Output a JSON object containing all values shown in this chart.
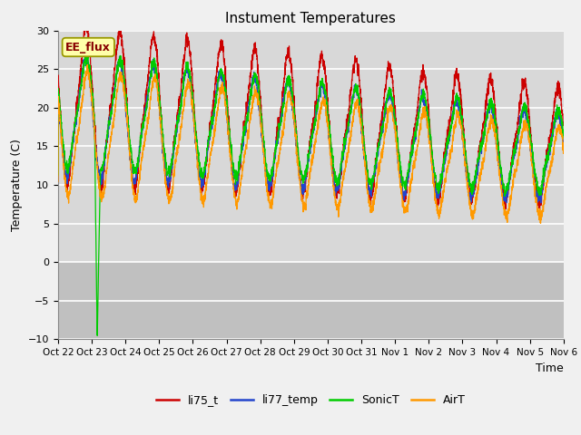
{
  "title": "Instument Temperatures",
  "ylabel": "Temperature (C)",
  "xlabel": "Time",
  "ylim": [
    -10,
    30
  ],
  "bg_color_upper": "#d8d8d8",
  "bg_color_lower": "#c8c8c8",
  "fig_bg": "#f0f0f0",
  "x_tick_labels": [
    "Oct 22",
    "Oct 23",
    "Oct 24",
    "Oct 25",
    "Oct 26",
    "Oct 27",
    "Oct 28",
    "Oct 29",
    "Oct 30",
    "Oct 31",
    "Nov 1",
    "Nov 2",
    "Nov 3",
    "Nov 4",
    "Nov 5",
    "Nov 6"
  ],
  "annotation": "EE_flux",
  "ann_bg": "#ffffaa",
  "ann_edge": "#999900",
  "ann_color": "#880000",
  "line_colors": {
    "li75_t": "#cc0000",
    "li77_temp": "#2244cc",
    "SonicT": "#00cc00",
    "AirT": "#ff9900"
  }
}
